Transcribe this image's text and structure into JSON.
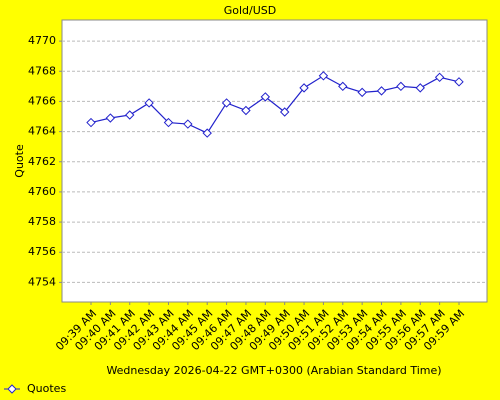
{
  "chart_data": {
    "type": "line",
    "title": "Gold/USD",
    "y_label": "Quote",
    "x_label": "Wednesday 2026-04-22 GMT+0300 (Arabian Standard Time)",
    "categories": [
      "09:39 AM",
      "09:40 AM",
      "09:41 AM",
      "09:42 AM",
      "09:43 AM",
      "09:44 AM",
      "09:45 AM",
      "09:46 AM",
      "09:47 AM",
      "09:48 AM",
      "09:49 AM",
      "09:50 AM",
      "09:51 AM",
      "09:52 AM",
      "09:53 AM",
      "09:54 AM",
      "09:55 AM",
      "09:56 AM",
      "09:57 AM",
      "09:59 AM"
    ],
    "series": [
      {
        "name": "Quotes",
        "color": "#2222cc",
        "values": [
          4764.6,
          4764.9,
          4765.1,
          4765.9,
          4764.6,
          4764.5,
          4763.9,
          4765.9,
          4765.4,
          4766.3,
          4765.3,
          4766.9,
          4767.7,
          4767.0,
          4766.6,
          4766.7,
          4767.0,
          4766.9,
          4767.6,
          4767.3
        ]
      }
    ],
    "ylim": [
      4752.7,
      4771.4
    ],
    "yticks": [
      4754,
      4756,
      4758,
      4760,
      4762,
      4764,
      4766,
      4768,
      4770
    ],
    "grid": true,
    "legend": "bottom-left"
  }
}
